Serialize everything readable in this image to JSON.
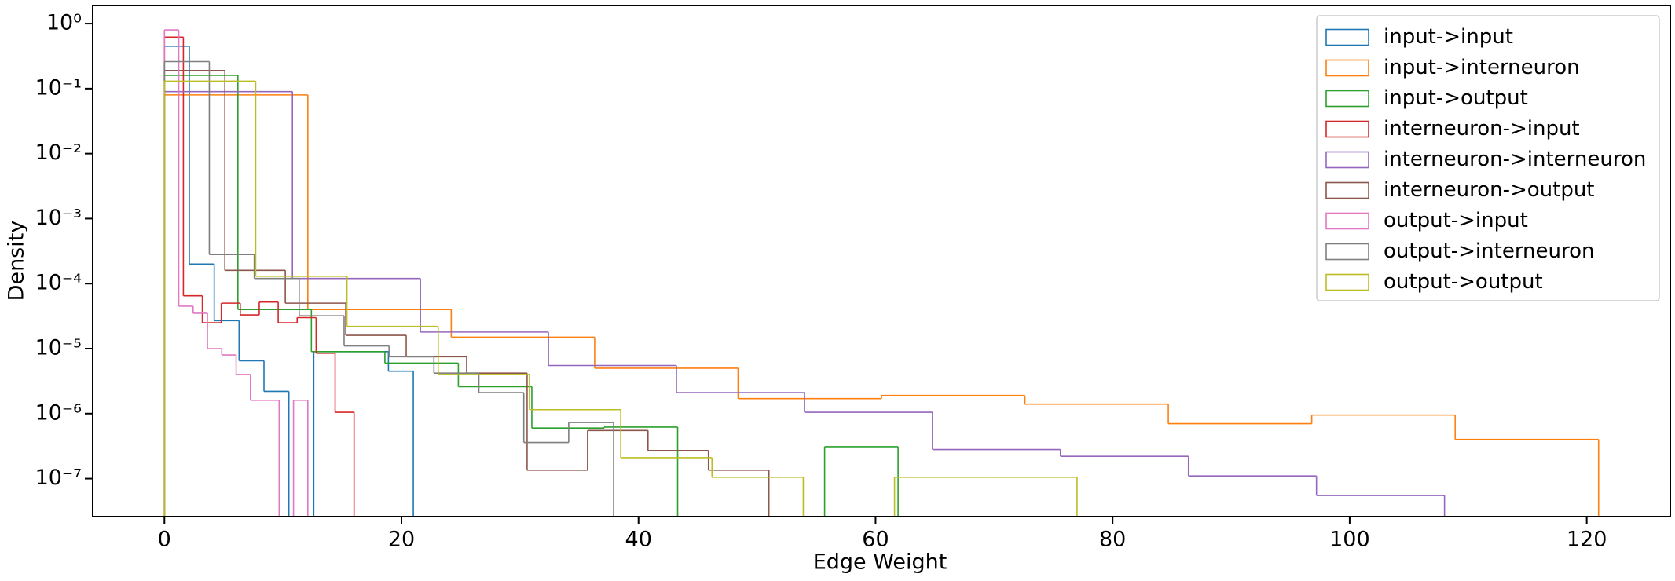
{
  "chart_data": {
    "type": "histogram",
    "xlabel": "Edge Weight",
    "ylabel": "Density",
    "xlim": [
      -6.05,
      127.05
    ],
    "xticks": [
      0,
      20,
      40,
      60,
      80,
      100,
      120
    ],
    "ylim": [
      2.6e-08,
      1.9
    ],
    "log_y": true,
    "yticks": [
      {
        "value": 1e-07,
        "label": "10⁻⁷"
      },
      {
        "value": 1e-06,
        "label": "10⁻⁶"
      },
      {
        "value": 1e-05,
        "label": "10⁻⁵"
      },
      {
        "value": 0.0001,
        "label": "10⁻⁴"
      },
      {
        "value": 0.001,
        "label": "10⁻³"
      },
      {
        "value": 0.01,
        "label": "10⁻²"
      },
      {
        "value": 0.1,
        "label": "10⁻¹"
      },
      {
        "value": 1,
        "label": "10⁰"
      }
    ],
    "legend": "upper right",
    "series": [
      {
        "name": "input->input",
        "color": "#1f77b4",
        "bins": [
          0,
          2.1,
          4.2,
          6.3,
          8.4,
          10.5,
          12.6,
          14.7,
          16.8,
          18.9,
          21
        ],
        "values": [
          0.45,
          0.0002,
          2.7e-05,
          6.5e-06,
          2.2e-06,
          0,
          9e-06,
          9e-06,
          9e-06,
          4.5e-06
        ]
      },
      {
        "name": "input->interneuron",
        "color": "#ff7f0e",
        "bins": [
          0,
          12.1,
          24.2,
          36.3,
          48.4,
          60.5,
          72.6,
          84.7,
          96.8,
          108.9,
          121
        ],
        "values": [
          0.08,
          4e-05,
          1.5e-05,
          5e-06,
          1.7e-06,
          1.9e-06,
          1.4e-06,
          7e-07,
          9.5e-07,
          4e-07
        ]
      },
      {
        "name": "input->output",
        "color": "#2ca02c",
        "bins": [
          0,
          6.2,
          12.4,
          18.6,
          24.8,
          31,
          37.1,
          43.3,
          49.5,
          55.7,
          61.9
        ],
        "values": [
          0.16,
          4e-05,
          9e-06,
          6e-06,
          2.6e-06,
          6e-07,
          6.2e-07,
          0,
          0,
          3.1e-07
        ]
      },
      {
        "name": "interneuron->input",
        "color": "#d62728",
        "bins": [
          0,
          1.6,
          3.2,
          4.8,
          6.4,
          8,
          9.6,
          11.2,
          12.8,
          14.4,
          16
        ],
        "values": [
          0.62,
          6.5e-05,
          2.5e-05,
          5e-05,
          3.3e-05,
          5.2e-05,
          2.5e-05,
          3e-05,
          8.5e-06,
          1.05e-06
        ]
      },
      {
        "name": "interneuron->interneuron",
        "color": "#9467bd",
        "bins": [
          0,
          10.8,
          21.6,
          32.4,
          43.2,
          54,
          64.8,
          75.6,
          86.4,
          97.2,
          108
        ],
        "values": [
          0.09,
          0.00012,
          1.8e-05,
          5.5e-06,
          2.1e-06,
          1.05e-06,
          2.8e-07,
          2.2e-07,
          1.1e-07,
          5.5e-08
        ]
      },
      {
        "name": "interneuron->output",
        "color": "#8c564b",
        "bins": [
          0,
          5.1,
          10.2,
          15.3,
          20.4,
          25.5,
          30.6,
          35.7,
          40.8,
          45.9,
          51
        ],
        "values": [
          0.19,
          0.00016,
          5e-05,
          1.6e-05,
          7.5e-06,
          4.2e-06,
          1.35e-07,
          5.5e-07,
          2.7e-07,
          1.35e-07
        ]
      },
      {
        "name": "output->input",
        "color": "#e377c2",
        "bins": [
          0,
          1.21,
          2.42,
          3.63,
          4.84,
          6.05,
          7.26,
          8.47,
          9.68,
          10.89,
          12.1
        ],
        "values": [
          0.8,
          4.5e-05,
          3.5e-05,
          1e-05,
          8e-06,
          4e-06,
          1.6e-06,
          1.6e-06,
          0,
          1.6e-06
        ]
      },
      {
        "name": "output->interneuron",
        "color": "#7f7f7f",
        "bins": [
          0,
          3.79,
          7.58,
          11.37,
          15.16,
          18.95,
          22.74,
          26.53,
          30.32,
          34.11,
          37.9
        ],
        "values": [
          0.26,
          0.00028,
          0.00012,
          3.2e-05,
          1.1e-05,
          7.5e-06,
          4.2e-06,
          2.1e-06,
          3.6e-07,
          7.3e-07
        ]
      },
      {
        "name": "output->output",
        "color": "#bcbd22",
        "bins": [
          0,
          7.7,
          15.4,
          23.1,
          30.8,
          38.5,
          46.2,
          53.9,
          61.6,
          69.3,
          77
        ],
        "values": [
          0.13,
          0.00013,
          2.2e-05,
          4e-06,
          1.15e-06,
          2.1e-07,
          1.05e-07,
          0,
          1.05e-07,
          1.05e-07
        ]
      }
    ]
  }
}
